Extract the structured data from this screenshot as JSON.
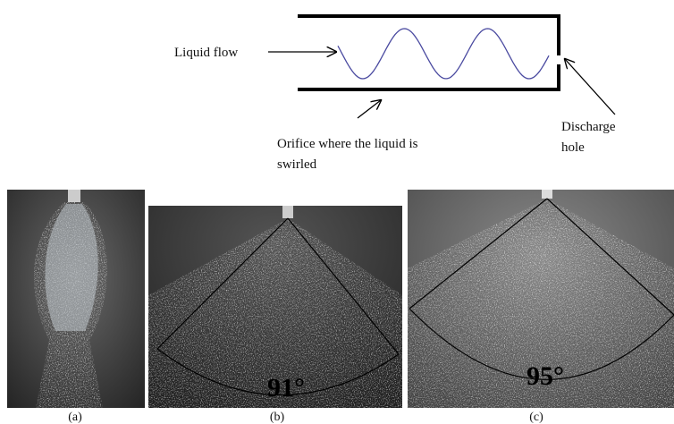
{
  "schematic": {
    "liquid_flow": "Liquid flow",
    "orifice_label": [
      "Orifice where the liquid is",
      "swirled"
    ],
    "discharge_label": [
      "Discharge",
      "hole"
    ]
  },
  "photos": [
    {
      "caption": "(a)"
    },
    {
      "caption": "(b)",
      "angle": "91°"
    },
    {
      "caption": "(c)",
      "angle": "95°"
    }
  ]
}
